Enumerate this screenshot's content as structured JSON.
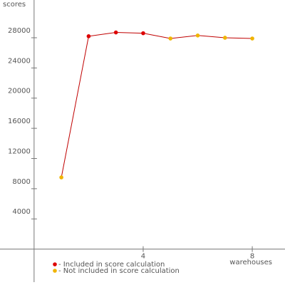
{
  "chart_data": {
    "type": "line",
    "ylabel": "scores",
    "xlabel": "warehouses",
    "x": [
      1,
      2,
      3,
      4,
      5,
      6,
      7,
      8
    ],
    "series": [
      {
        "color": "#c00000",
        "values": [
          9500,
          28200,
          28700,
          28600,
          27900,
          28300,
          28000,
          27900
        ]
      }
    ],
    "point_colors": [
      "#f0b400",
      "#dd0000",
      "#dd0000",
      "#dd0000",
      "#f0b400",
      "#f0b400",
      "#f0b400",
      "#f0b400"
    ],
    "legend": [
      {
        "label": "- Included in score calculation",
        "color": "#dd0000"
      },
      {
        "label": "- Not included in score calculation",
        "color": "#f0b400"
      }
    ],
    "xlim": [
      -1.25,
      9.2
    ],
    "ylim": [
      -4000,
      33000
    ],
    "xticks": [
      4,
      8
    ],
    "yticks": [
      4000,
      8000,
      12000,
      16000,
      20000,
      24000,
      28000
    ]
  }
}
